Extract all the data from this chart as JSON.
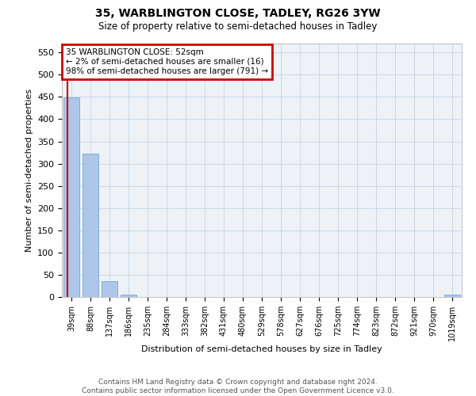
{
  "title": "35, WARBLINGTON CLOSE, TADLEY, RG26 3YW",
  "subtitle": "Size of property relative to semi-detached houses in Tadley",
  "xlabel": "Distribution of semi-detached houses by size in Tadley",
  "ylabel": "Number of semi-detached properties",
  "categories": [
    "39sqm",
    "88sqm",
    "137sqm",
    "186sqm",
    "235sqm",
    "284sqm",
    "333sqm",
    "382sqm",
    "431sqm",
    "480sqm",
    "529sqm",
    "578sqm",
    "627sqm",
    "676sqm",
    "725sqm",
    "774sqm",
    "823sqm",
    "872sqm",
    "921sqm",
    "970sqm",
    "1019sqm"
  ],
  "values": [
    449,
    323,
    35,
    5,
    0,
    0,
    0,
    0,
    0,
    0,
    0,
    0,
    0,
    0,
    0,
    0,
    0,
    0,
    0,
    0,
    5
  ],
  "bar_color": "#aec6e8",
  "bar_edgecolor": "#5a9fd4",
  "annotation_title": "35 WARBLINGTON CLOSE: 52sqm",
  "annotation_line1": "← 2% of semi-detached houses are smaller (16)",
  "annotation_line2": "98% of semi-detached houses are larger (791) →",
  "annotation_box_color": "#cc0000",
  "ylim": [
    0,
    570
  ],
  "yticks": [
    0,
    50,
    100,
    150,
    200,
    250,
    300,
    350,
    400,
    450,
    500,
    550
  ],
  "grid_color": "#c8d8e8",
  "bg_color": "#eef2f7",
  "footer_line1": "Contains HM Land Registry data © Crown copyright and database right 2024.",
  "footer_line2": "Contains public sector information licensed under the Open Government Licence v3.0."
}
